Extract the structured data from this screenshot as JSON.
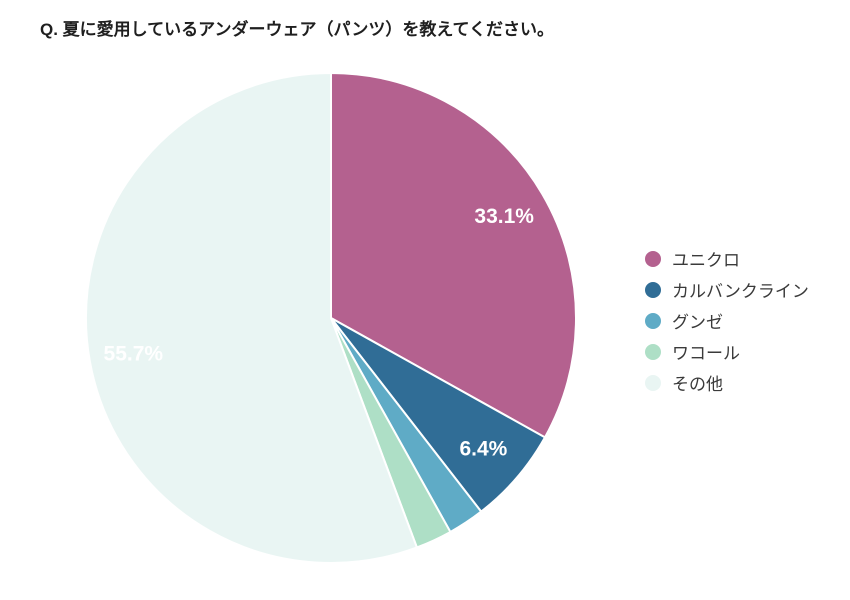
{
  "title": {
    "text": "Q. 夏に愛用しているアンダーウェア（パンツ）を教えてください。",
    "color": "#1f1f1f"
  },
  "colors": {
    "background": "#ffffff",
    "slice_gap": "#ffffff",
    "percent_label_text": "#ffffff",
    "legend_text": "#3a3a3a"
  },
  "chart_data": {
    "type": "pie",
    "title": "Q. 夏に愛用しているアンダーウェア（パンツ）を教えてください。",
    "start_angle_deg": 0,
    "direction": "clockwise",
    "legend_position": "right",
    "slices": [
      {
        "name": "ユニクロ",
        "value": 33.1,
        "percent_label": "33.1%",
        "color": "#b4618f"
      },
      {
        "name": "カルバンクライン",
        "value": 6.4,
        "percent_label": "6.4%",
        "color": "#306d96"
      },
      {
        "name": "グンゼ",
        "value": 2.4,
        "percent_label": "",
        "color": "#5fabc6"
      },
      {
        "name": "ワコール",
        "value": 2.4,
        "percent_label": "",
        "color": "#aedfc6"
      },
      {
        "name": "その他",
        "value": 55.7,
        "percent_label": "55.7%",
        "color": "#e9f5f3"
      }
    ]
  }
}
